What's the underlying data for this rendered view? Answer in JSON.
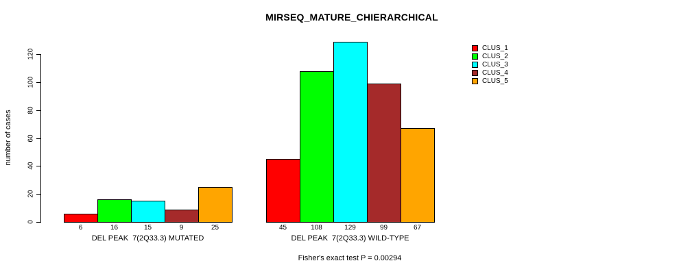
{
  "chart_data": {
    "type": "bar",
    "title": "MIRSEQ_MATURE_CHIERARCHICAL",
    "ylabel": "number of cases",
    "xlabel": "",
    "ylim": [
      0,
      130
    ],
    "yticks": [
      0,
      20,
      40,
      60,
      80,
      100,
      120
    ],
    "grid": false,
    "legend_position": "right",
    "series_names": [
      "CLUS_1",
      "CLUS_2",
      "CLUS_3",
      "CLUS_4",
      "CLUS_5"
    ],
    "colors": [
      "#ff0000",
      "#00ff00",
      "#00ffff",
      "#a52a2a",
      "#ffa500"
    ],
    "groups": [
      {
        "label": "DEL PEAK  7(2Q33.3) MUTATED",
        "values": [
          6,
          16,
          15,
          9,
          25
        ],
        "value_labels": [
          "6",
          "16",
          "15",
          "9",
          "25"
        ]
      },
      {
        "label": "DEL PEAK  7(2Q33.3) WILD-TYPE",
        "values": [
          45,
          108,
          129,
          99,
          67
        ],
        "value_labels": [
          "45",
          "108",
          "129",
          "99",
          "67"
        ]
      }
    ],
    "annotation": "Fisher's exact test P = 0.00294"
  },
  "legend": {
    "items": [
      {
        "label": "CLUS_1",
        "color": "#ff0000"
      },
      {
        "label": "CLUS_2",
        "color": "#00ff00"
      },
      {
        "label": "CLUS_3",
        "color": "#00ffff"
      },
      {
        "label": "CLUS_4",
        "color": "#a52a2a"
      },
      {
        "label": "CLUS_5",
        "color": "#ffa500"
      }
    ]
  }
}
